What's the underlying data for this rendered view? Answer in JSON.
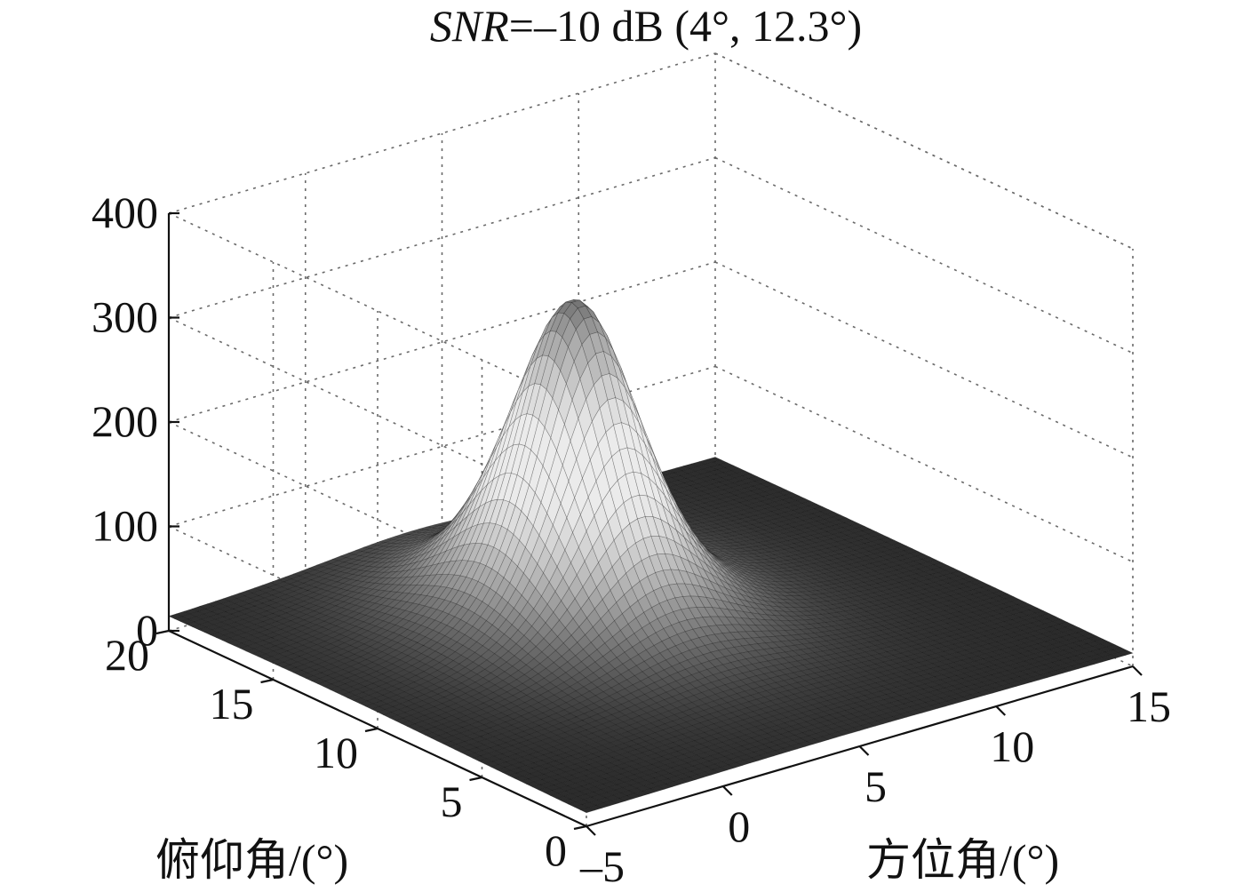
{
  "chart_data": {
    "type": "surface3d",
    "title_prefix": "SNR",
    "title_rest": "=–10 dB (4°, 12.3°)",
    "xlabel": "方位角/(°)",
    "ylabel": "俯仰角/(°)",
    "zlabel": "",
    "x_ticks": [
      "–5",
      "0",
      "5",
      "10",
      "15"
    ],
    "y_ticks": [
      "0",
      "5",
      "10",
      "15",
      "20"
    ],
    "z_ticks": [
      "0",
      "100",
      "200",
      "300",
      "400"
    ],
    "xlim": [
      -5,
      15
    ],
    "ylim": [
      0,
      20
    ],
    "zlim": [
      0,
      400
    ],
    "peak": {
      "azimuth": 4,
      "elevation": 12.3,
      "value": 320
    },
    "floor_level": 12,
    "grid": true
  }
}
